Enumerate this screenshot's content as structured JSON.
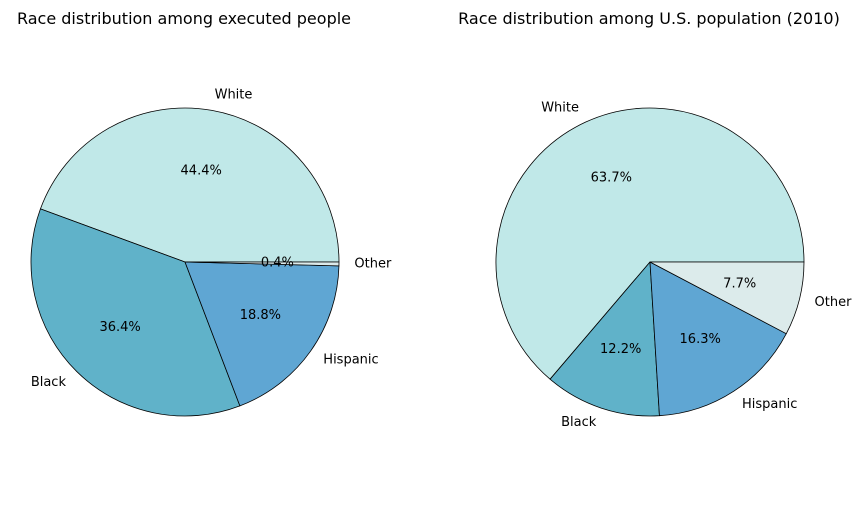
{
  "chart_data": [
    {
      "type": "pie",
      "title": "Race distribution among executed people",
      "categories": [
        "White",
        "Black",
        "Hispanic",
        "Other"
      ],
      "values": [
        44.4,
        36.4,
        18.8,
        0.4
      ],
      "percent_labels": [
        "44.4%",
        "36.4%",
        "18.8%",
        "0.4%"
      ],
      "colors": [
        "#c0e8e8",
        "#60b2c9",
        "#5fa6d3",
        "#dcebeb"
      ],
      "start_angle_deg": 0,
      "direction": "counterclockwise",
      "edge_color": "#000000",
      "legend": "none"
    },
    {
      "type": "pie",
      "title": "Race distribution among U.S. population (2010)",
      "categories": [
        "White",
        "Black",
        "Hispanic",
        "Other"
      ],
      "values": [
        63.7,
        12.2,
        16.3,
        7.7
      ],
      "percent_labels": [
        "63.7%",
        "12.2%",
        "16.3%",
        "7.7%"
      ],
      "colors": [
        "#c0e8e8",
        "#60b2c9",
        "#5fa6d3",
        "#dcebeb"
      ],
      "start_angle_deg": 0,
      "direction": "counterclockwise",
      "edge_color": "#000000",
      "legend": "none"
    }
  ]
}
